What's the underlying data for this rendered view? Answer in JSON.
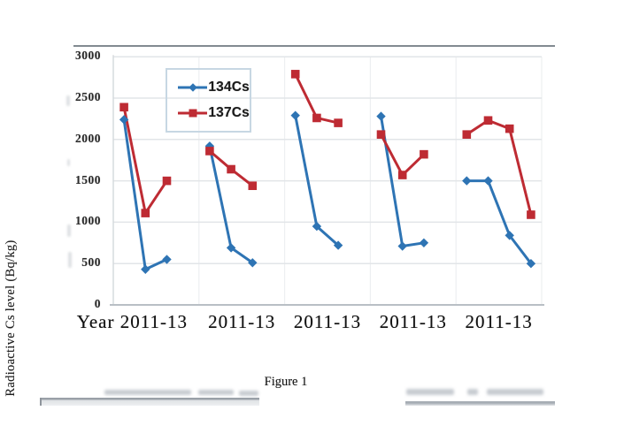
{
  "caption": "Figure 1",
  "chart_data": {
    "type": "line",
    "title": "",
    "ylabel": "Radioactive Cs level (Bq/kg)",
    "xlabel": "Year",
    "x_group_labels": [
      "Year 2011-13",
      "2011-13",
      "2011-13",
      "2011-13",
      "2011-13"
    ],
    "yticks": [
      0,
      500,
      1000,
      1500,
      2000,
      2500,
      3000
    ],
    "ylim": [
      0,
      3000
    ],
    "grid": true,
    "legend_position": "inside-top-left",
    "series": [
      {
        "name": "134Cs",
        "color": "#2E74B4",
        "marker": "diamond",
        "groups": [
          [
            2240,
            430,
            550
          ],
          [
            1920,
            690,
            510
          ],
          [
            2290,
            950,
            720
          ],
          [
            2280,
            710,
            750
          ],
          [
            1500,
            1500,
            840,
            500
          ]
        ]
      },
      {
        "name": "137Cs",
        "color": "#BE2B33",
        "marker": "square",
        "groups": [
          [
            2390,
            1110,
            1500
          ],
          [
            1860,
            1640,
            1440
          ],
          [
            2790,
            2260,
            2200
          ],
          [
            2060,
            1570,
            1820
          ],
          [
            2060,
            2230,
            2130,
            1090
          ]
        ]
      }
    ]
  }
}
